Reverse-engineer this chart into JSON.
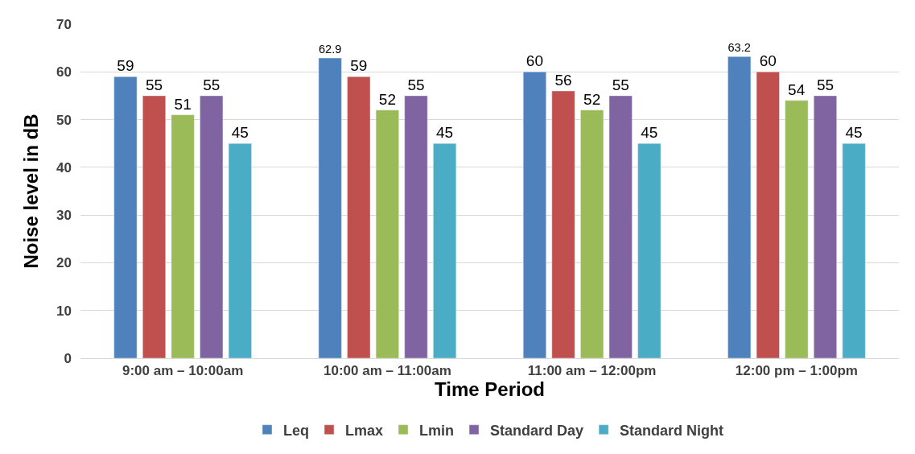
{
  "chart_data": {
    "type": "bar",
    "xlabel": "Time Period",
    "ylabel": "Noise level in dB",
    "categories": [
      "9:00 am – 10:00am",
      "10:00 am – 11:00am",
      "11:00 am – 12:00pm",
      "12:00 pm – 1:00pm"
    ],
    "series": [
      {
        "name": "Leq",
        "color": "#4f81bd",
        "values": [
          59,
          62.9,
          60,
          63.2
        ]
      },
      {
        "name": "Lmax",
        "color": "#c0504d",
        "values": [
          55,
          59,
          56,
          60
        ]
      },
      {
        "name": "Lmin",
        "color": "#9bbb59",
        "values": [
          51,
          52,
          52,
          54
        ]
      },
      {
        "name": "Standard Day",
        "color": "#8064a2",
        "values": [
          55,
          55,
          55,
          55
        ]
      },
      {
        "name": "Standard Night",
        "color": "#4bacc6",
        "values": [
          45,
          45,
          45,
          45
        ]
      }
    ],
    "ylim": [
      0,
      70
    ],
    "yticks": [
      0,
      10,
      20,
      30,
      40,
      50,
      60,
      70
    ],
    "grid": "y",
    "legend": "bottom",
    "data_labels": true
  }
}
